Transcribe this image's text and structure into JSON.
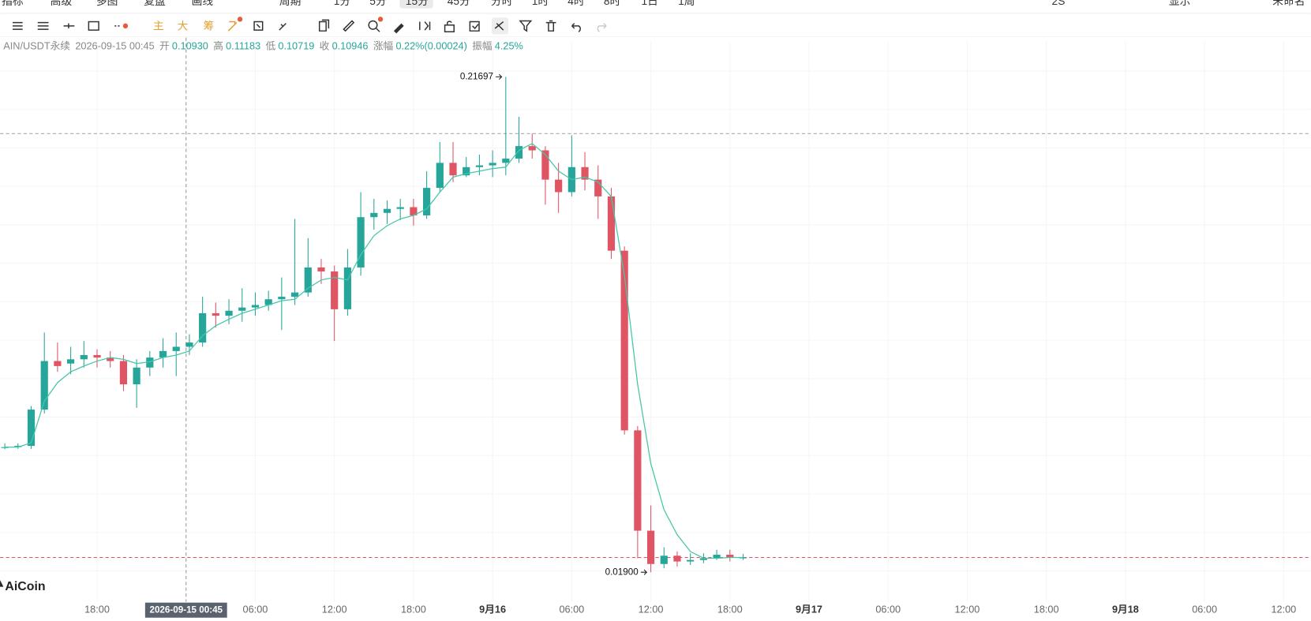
{
  "toolbar": {
    "menu": [
      "指标",
      "高级",
      "多图",
      "复盘",
      "画线",
      "周期"
    ],
    "periods": [
      "1分",
      "5分",
      "15分",
      "45分",
      "分时",
      "1时",
      "4时",
      "8时",
      "1日",
      "1周"
    ],
    "active_period": "15分",
    "right": [
      "2S",
      "显示",
      "未命名"
    ]
  },
  "drawing_tools": [
    "主",
    "大",
    "筹"
  ],
  "legend": {
    "symbol": "AIN/USDT永续",
    "time": "2026-09-15 00:45",
    "items": [
      [
        "开",
        "0.10930"
      ],
      [
        "高",
        "0.11183"
      ],
      [
        "低",
        "0.10719"
      ],
      [
        "收",
        "0.10946"
      ],
      [
        "涨幅",
        "0.22%(0.00024)"
      ],
      [
        "振幅",
        "4.25%"
      ]
    ]
  },
  "watermark": "AiCoin",
  "chart_data": {
    "type": "candlestick",
    "up_color": "#26a69a",
    "down_color": "#e05563",
    "ma_color": "#45c7a8",
    "xlim": [
      -7.36,
      92.07
    ],
    "ylim": [
      0.0072,
      0.2243
    ],
    "xticks": [
      {
        "value": 0,
        "label": "18:00"
      },
      {
        "value": 12,
        "label": "06:00"
      },
      {
        "value": 18,
        "label": "12:00"
      },
      {
        "value": 24,
        "label": "18:00"
      },
      {
        "value": 30,
        "label": "9月16"
      },
      {
        "value": 36,
        "label": "06:00"
      },
      {
        "value": 42,
        "label": "12:00"
      },
      {
        "value": 48,
        "label": "18:00"
      },
      {
        "value": 54,
        "label": "9月17"
      },
      {
        "value": 60,
        "label": "06:00"
      },
      {
        "value": 66,
        "label": "12:00"
      },
      {
        "value": 72,
        "label": "18:00"
      },
      {
        "value": 78,
        "label": "9月18"
      },
      {
        "value": 84,
        "label": "06:00"
      },
      {
        "value": 90,
        "label": "12:00"
      }
    ],
    "x": [
      -7,
      -6,
      -5,
      -4,
      -3,
      -2,
      -1,
      0,
      1,
      2,
      3,
      4,
      5,
      6,
      7,
      8,
      9,
      10,
      11,
      12,
      13,
      14,
      15,
      16,
      17,
      18,
      19,
      20,
      21,
      22,
      23,
      24,
      25,
      26,
      27,
      28,
      29,
      30,
      31,
      32,
      33,
      34,
      35,
      36,
      37,
      38,
      39,
      40,
      41,
      42,
      43,
      44,
      45,
      46,
      47,
      48,
      49
    ],
    "open": [
      0.069,
      0.069,
      0.0695,
      0.084,
      0.1034,
      0.1024,
      0.1041,
      0.1058,
      0.1048,
      0.1034,
      0.0941,
      0.1008,
      0.1048,
      0.1074,
      0.1091,
      0.1108,
      0.1225,
      0.1215,
      0.1235,
      0.1248,
      0.1258,
      0.1281,
      0.1291,
      0.1308,
      0.1408,
      0.1392,
      0.1241,
      0.1408,
      0.1609,
      0.1626,
      0.1642,
      0.1649,
      0.1616,
      0.1726,
      0.1826,
      0.1776,
      0.1809,
      0.1816,
      0.1826,
      0.1843,
      0.1893,
      0.1876,
      0.1759,
      0.1709,
      0.1809,
      0.1759,
      0.1692,
      0.1475,
      0.0757,
      0.0356,
      0.0223,
      0.0256,
      0.0233,
      0.0239,
      0.0246,
      0.026,
      0.0249
    ],
    "high": [
      0.0705,
      0.0705,
      0.0854,
      0.1148,
      0.1108,
      0.1091,
      0.1114,
      0.1081,
      0.1074,
      0.1058,
      0.1041,
      0.1074,
      0.1125,
      0.1148,
      0.1141,
      0.1291,
      0.1268,
      0.1281,
      0.1325,
      0.1308,
      0.1315,
      0.1368,
      0.1602,
      0.1525,
      0.1442,
      0.1415,
      0.1482,
      0.1709,
      0.1682,
      0.1676,
      0.1682,
      0.1682,
      0.1793,
      0.1909,
      0.1909,
      0.1849,
      0.1859,
      0.1876,
      0.21697,
      0.201,
      0.1943,
      0.1893,
      0.1826,
      0.1936,
      0.1869,
      0.1816,
      0.1726,
      0.1492,
      0.0774,
      0.0457,
      0.029,
      0.0273,
      0.0266,
      0.0266,
      0.028,
      0.028,
      0.0263
    ],
    "low": [
      0.0682,
      0.0683,
      0.0683,
      0.0824,
      0.0991,
      0.0981,
      0.1008,
      0.1008,
      0.1008,
      0.0914,
      0.0847,
      0.0974,
      0.1008,
      0.0974,
      0.1058,
      0.1091,
      0.1168,
      0.1181,
      0.1191,
      0.1215,
      0.1235,
      0.1158,
      0.1258,
      0.1291,
      0.1342,
      0.1114,
      0.1215,
      0.1375,
      0.1559,
      0.1582,
      0.1597,
      0.1575,
      0.1602,
      0.1709,
      0.1749,
      0.1769,
      0.1776,
      0.1769,
      0.1776,
      0.1826,
      0.1843,
      0.1659,
      0.1626,
      0.1692,
      0.1716,
      0.1602,
      0.1442,
      0.074,
      0.0246,
      0.019,
      0.0206,
      0.0213,
      0.0219,
      0.0226,
      0.0239,
      0.0233,
      0.0239
    ],
    "close": [
      0.069,
      0.0695,
      0.084,
      0.1034,
      0.1014,
      0.1041,
      0.1058,
      0.1048,
      0.1034,
      0.0941,
      0.1008,
      0.1048,
      0.1074,
      0.1091,
      0.1108,
      0.1225,
      0.1215,
      0.1235,
      0.1248,
      0.1258,
      0.1281,
      0.1291,
      0.1308,
      0.1408,
      0.1392,
      0.1241,
      0.1408,
      0.1609,
      0.1626,
      0.1642,
      0.1649,
      0.1616,
      0.1726,
      0.1826,
      0.1776,
      0.1809,
      0.1816,
      0.1826,
      0.1843,
      0.1893,
      0.1876,
      0.1759,
      0.1709,
      0.1809,
      0.1759,
      0.1692,
      0.1475,
      0.0757,
      0.0356,
      0.0223,
      0.0256,
      0.0233,
      0.0239,
      0.0246,
      0.026,
      0.0249,
      0.0249
    ],
    "ma": [
      0.069,
      0.069,
      0.0707,
      0.0874,
      0.0948,
      0.0991,
      0.1014,
      0.1034,
      0.1048,
      0.1041,
      0.1024,
      0.1031,
      0.1048,
      0.1058,
      0.1074,
      0.1135,
      0.1175,
      0.1201,
      0.1225,
      0.1241,
      0.1258,
      0.1275,
      0.1281,
      0.1325,
      0.1358,
      0.1368,
      0.1358,
      0.1459,
      0.1535,
      0.1575,
      0.1602,
      0.1616,
      0.1642,
      0.1709,
      0.1769,
      0.1783,
      0.1793,
      0.1803,
      0.1809,
      0.1876,
      0.1903,
      0.1859,
      0.1793,
      0.1759,
      0.1769,
      0.1749,
      0.1692,
      0.1375,
      0.0941,
      0.0624,
      0.044,
      0.034,
      0.0273,
      0.0246,
      0.0246,
      0.0249,
      0.0249
    ],
    "high_marker": {
      "x": 31,
      "value": 0.21697,
      "label": "0.21697"
    },
    "low_marker": {
      "x": 42,
      "value": 0.019,
      "label": "0.01900"
    },
    "crosshair": {
      "x": 6.75,
      "y": 0.1943,
      "label": "2026-09-15 00:45"
    },
    "last_price": 0.0249
  }
}
